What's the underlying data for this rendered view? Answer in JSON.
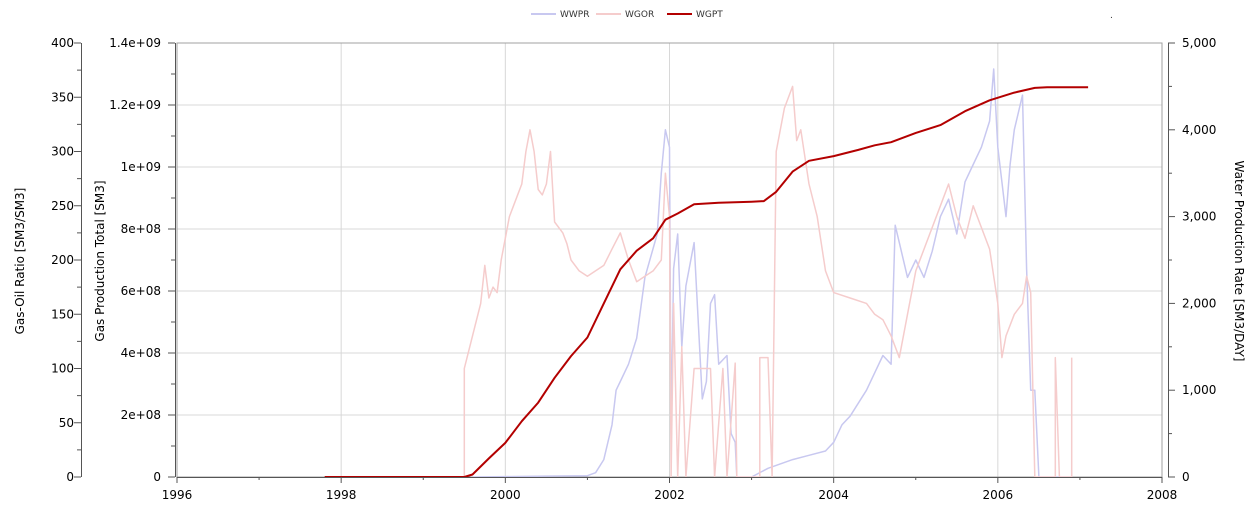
{
  "chart_data": {
    "type": "line",
    "title": "",
    "legend_position": "top-center",
    "legend": [
      {
        "name": "WWPR",
        "color": "#c8c8f0"
      },
      {
        "name": "WGOR",
        "color": "#f5cccc"
      },
      {
        "name": "WGPT",
        "color": "#b30000"
      }
    ],
    "corner_mark": ".",
    "grid": true,
    "x_axis": {
      "range": [
        1996,
        2008
      ],
      "ticks": [
        "1996",
        "1998",
        "2000",
        "2002",
        "2004",
        "2006",
        "2008"
      ]
    },
    "y_axes": {
      "gor": {
        "label": "Gas-Oil Ratio [SM3/SM3]",
        "range": [
          0,
          400
        ],
        "ticks": [
          "0",
          "50",
          "100",
          "150",
          "200",
          "250",
          "300",
          "350",
          "400"
        ]
      },
      "gpt": {
        "label": "Gas Production Total [SM3]",
        "range": [
          0,
          1400000000
        ],
        "ticks": [
          "0",
          "2e+08",
          "4e+08",
          "6e+08",
          "8e+08",
          "1e+09",
          "1.2e+09",
          "1.4e+09"
        ]
      },
      "wpr": {
        "label": "Water Production Rate [SM3/DAY]",
        "range": [
          0,
          5000
        ],
        "ticks": [
          "0",
          "1,000",
          "2,000",
          "3,000",
          "4,000",
          "5,000"
        ]
      }
    },
    "series": [
      {
        "name": "WGPT",
        "axis": "gpt",
        "color": "#b30000",
        "points": [
          [
            1997.8,
            0
          ],
          [
            1999.5,
            0
          ],
          [
            1999.6,
            8000000
          ],
          [
            1999.8,
            60000000
          ],
          [
            2000.0,
            110000000
          ],
          [
            2000.2,
            180000000
          ],
          [
            2000.4,
            240000000
          ],
          [
            2000.6,
            320000000
          ],
          [
            2000.8,
            390000000
          ],
          [
            2001.0,
            450000000
          ],
          [
            2001.2,
            560000000
          ],
          [
            2001.4,
            670000000
          ],
          [
            2001.6,
            730000000
          ],
          [
            2001.8,
            770000000
          ],
          [
            2001.95,
            830000000
          ],
          [
            2002.1,
            850000000
          ],
          [
            2002.3,
            880000000
          ],
          [
            2002.6,
            885000000
          ],
          [
            2003.0,
            888000000
          ],
          [
            2003.15,
            890000000
          ],
          [
            2003.3,
            920000000
          ],
          [
            2003.5,
            985000000
          ],
          [
            2003.7,
            1020000000
          ],
          [
            2004.0,
            1035000000
          ],
          [
            2004.3,
            1055000000
          ],
          [
            2004.5,
            1070000000
          ],
          [
            2004.7,
            1080000000
          ],
          [
            2005.0,
            1110000000
          ],
          [
            2005.3,
            1135000000
          ],
          [
            2005.6,
            1180000000
          ],
          [
            2005.9,
            1215000000
          ],
          [
            2006.2,
            1240000000
          ],
          [
            2006.45,
            1255000000
          ],
          [
            2006.6,
            1257000000
          ],
          [
            2007.1,
            1257000000
          ]
        ]
      },
      {
        "name": "WGOR",
        "axis": "gor",
        "color": "#f5cccc",
        "points": [
          [
            1999.5,
            0
          ],
          [
            1999.5,
            100
          ],
          [
            1999.6,
            130
          ],
          [
            1999.7,
            160
          ],
          [
            1999.75,
            195
          ],
          [
            1999.8,
            165
          ],
          [
            1999.85,
            175
          ],
          [
            1999.9,
            170
          ],
          [
            1999.95,
            200
          ],
          [
            2000.0,
            220
          ],
          [
            2000.05,
            240
          ],
          [
            2000.1,
            250
          ],
          [
            2000.2,
            270
          ],
          [
            2000.25,
            300
          ],
          [
            2000.3,
            320
          ],
          [
            2000.35,
            300
          ],
          [
            2000.4,
            265
          ],
          [
            2000.45,
            260
          ],
          [
            2000.5,
            270
          ],
          [
            2000.55,
            300
          ],
          [
            2000.6,
            235
          ],
          [
            2000.7,
            225
          ],
          [
            2000.75,
            215
          ],
          [
            2000.8,
            200
          ],
          [
            2000.9,
            190
          ],
          [
            2001.0,
            185
          ],
          [
            2001.2,
            195
          ],
          [
            2001.3,
            210
          ],
          [
            2001.4,
            225
          ],
          [
            2001.5,
            200
          ],
          [
            2001.6,
            180
          ],
          [
            2001.7,
            185
          ],
          [
            2001.8,
            190
          ],
          [
            2001.9,
            200
          ],
          [
            2001.95,
            280
          ],
          [
            2002.0,
            240
          ],
          [
            2002.02,
            0
          ],
          [
            2002.05,
            160
          ],
          [
            2002.1,
            0
          ],
          [
            2002.15,
            120
          ],
          [
            2002.2,
            0
          ],
          [
            2002.3,
            100
          ],
          [
            2002.5,
            100
          ],
          [
            2002.55,
            0
          ],
          [
            2002.65,
            100
          ],
          [
            2002.7,
            0
          ],
          [
            2002.8,
            105
          ],
          [
            2002.82,
            0
          ],
          [
            2003.1,
            0
          ],
          [
            2003.1,
            110
          ],
          [
            2003.2,
            110
          ],
          [
            2003.25,
            0
          ],
          [
            2003.3,
            300
          ],
          [
            2003.4,
            340
          ],
          [
            2003.5,
            360
          ],
          [
            2003.55,
            310
          ],
          [
            2003.6,
            320
          ],
          [
            2003.7,
            270
          ],
          [
            2003.8,
            240
          ],
          [
            2003.9,
            190
          ],
          [
            2004.0,
            170
          ],
          [
            2004.2,
            165
          ],
          [
            2004.4,
            160
          ],
          [
            2004.5,
            150
          ],
          [
            2004.6,
            145
          ],
          [
            2004.7,
            130
          ],
          [
            2004.8,
            110
          ],
          [
            2004.9,
            150
          ],
          [
            2005.0,
            190
          ],
          [
            2005.2,
            230
          ],
          [
            2005.3,
            250
          ],
          [
            2005.4,
            270
          ],
          [
            2005.5,
            240
          ],
          [
            2005.6,
            220
          ],
          [
            2005.7,
            250
          ],
          [
            2005.8,
            230
          ],
          [
            2005.9,
            210
          ],
          [
            2006.0,
            160
          ],
          [
            2006.05,
            110
          ],
          [
            2006.1,
            130
          ],
          [
            2006.2,
            150
          ],
          [
            2006.3,
            160
          ],
          [
            2006.35,
            185
          ],
          [
            2006.4,
            170
          ],
          [
            2006.45,
            0
          ],
          [
            2006.7,
            0
          ],
          [
            2006.7,
            110
          ],
          [
            2006.75,
            0
          ],
          [
            2006.9,
            0
          ],
          [
            2006.9,
            110
          ]
        ]
      },
      {
        "name": "WWPR",
        "axis": "wpr",
        "color": "#c8c8f0",
        "points": [
          [
            1999.6,
            0
          ],
          [
            2000.0,
            5
          ],
          [
            2000.5,
            10
          ],
          [
            2001.0,
            15
          ],
          [
            2001.1,
            50
          ],
          [
            2001.2,
            200
          ],
          [
            2001.3,
            600
          ],
          [
            2001.35,
            1000
          ],
          [
            2001.4,
            1100
          ],
          [
            2001.5,
            1300
          ],
          [
            2001.6,
            1600
          ],
          [
            2001.7,
            2300
          ],
          [
            2001.85,
            2800
          ],
          [
            2001.9,
            3500
          ],
          [
            2001.95,
            4000
          ],
          [
            2002.0,
            3800
          ],
          [
            2002.02,
            500
          ],
          [
            2002.05,
            2400
          ],
          [
            2002.1,
            2800
          ],
          [
            2002.15,
            1500
          ],
          [
            2002.2,
            2200
          ],
          [
            2002.3,
            2700
          ],
          [
            2002.4,
            900
          ],
          [
            2002.45,
            1100
          ],
          [
            2002.5,
            2000
          ],
          [
            2002.55,
            2100
          ],
          [
            2002.6,
            1300
          ],
          [
            2002.7,
            1400
          ],
          [
            2002.75,
            500
          ],
          [
            2002.8,
            400
          ],
          [
            2002.82,
            0
          ],
          [
            2003.0,
            0
          ],
          [
            2003.2,
            100
          ],
          [
            2003.5,
            200
          ],
          [
            2003.7,
            250
          ],
          [
            2003.9,
            300
          ],
          [
            2004.0,
            400
          ],
          [
            2004.1,
            600
          ],
          [
            2004.2,
            700
          ],
          [
            2004.4,
            1000
          ],
          [
            2004.5,
            1200
          ],
          [
            2004.6,
            1400
          ],
          [
            2004.7,
            1300
          ],
          [
            2004.75,
            2900
          ],
          [
            2004.8,
            2700
          ],
          [
            2004.9,
            2300
          ],
          [
            2005.0,
            2500
          ],
          [
            2005.1,
            2300
          ],
          [
            2005.2,
            2600
          ],
          [
            2005.3,
            3000
          ],
          [
            2005.4,
            3200
          ],
          [
            2005.5,
            2800
          ],
          [
            2005.6,
            3400
          ],
          [
            2005.7,
            3600
          ],
          [
            2005.8,
            3800
          ],
          [
            2005.9,
            4100
          ],
          [
            2005.95,
            4700
          ],
          [
            2006.0,
            3800
          ],
          [
            2006.1,
            3000
          ],
          [
            2006.15,
            3600
          ],
          [
            2006.2,
            4000
          ],
          [
            2006.3,
            4400
          ],
          [
            2006.35,
            2400
          ],
          [
            2006.4,
            1000
          ],
          [
            2006.45,
            1000
          ],
          [
            2006.5,
            0
          ],
          [
            2006.9,
            0
          ],
          [
            2006.9,
            80
          ]
        ]
      }
    ]
  }
}
